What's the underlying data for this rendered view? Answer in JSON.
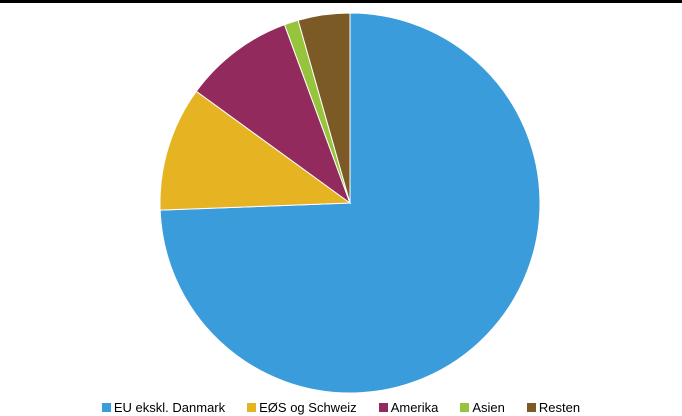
{
  "chart_data": {
    "type": "pie",
    "title": "",
    "categories": [
      "EU ekskl. Danmark",
      "EØS og Schweiz",
      "Amerika",
      "Asien",
      "Resten"
    ],
    "values": [
      74.4,
      10.6,
      9.4,
      1.2,
      4.4
    ],
    "colors": [
      "#3b9cdb",
      "#e6b322",
      "#922a5e",
      "#97c43d",
      "#7c5a26"
    ],
    "legend_position": "bottom",
    "start_angle": "12 o'clock",
    "direction": "clockwise"
  }
}
